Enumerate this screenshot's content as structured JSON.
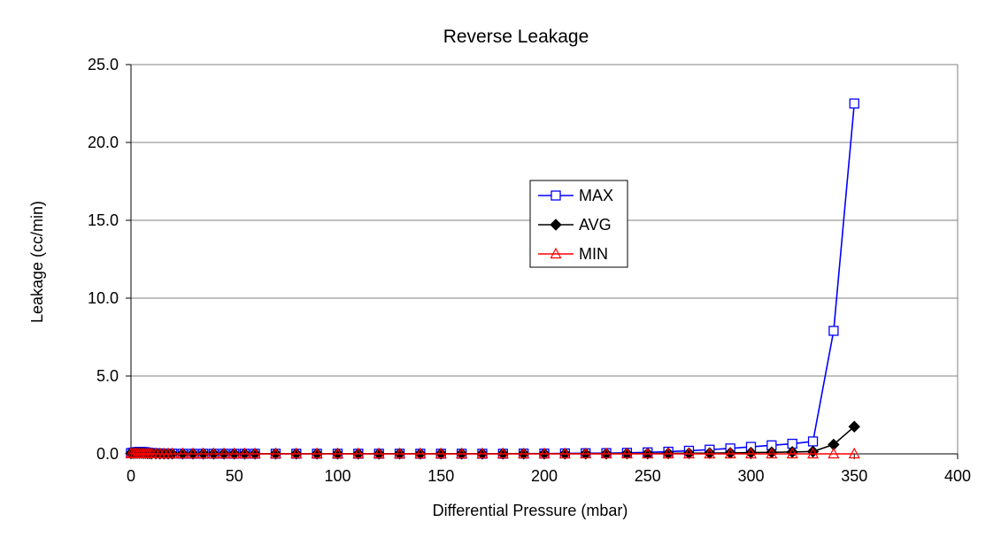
{
  "chart_data": {
    "type": "line",
    "title": "Reverse Leakage",
    "xlabel": "Differential Pressure (mbar)",
    "ylabel": "Leakage (cc/min)",
    "xlim": [
      0,
      400
    ],
    "ylim": [
      0,
      25
    ],
    "x_ticks": [
      "0",
      "50",
      "100",
      "150",
      "200",
      "250",
      "300",
      "350",
      "400"
    ],
    "y_ticks": [
      "0.0",
      "5.0",
      "10.0",
      "15.0",
      "20.0",
      "25.0"
    ],
    "grid": "horizontal",
    "legend_position": "center",
    "x": [
      0,
      1,
      2,
      3,
      4,
      5,
      6,
      7,
      8,
      9,
      10,
      12,
      14,
      16,
      18,
      20,
      25,
      30,
      35,
      40,
      45,
      50,
      55,
      60,
      70,
      80,
      90,
      100,
      110,
      120,
      130,
      140,
      150,
      160,
      170,
      180,
      190,
      200,
      210,
      220,
      230,
      240,
      250,
      260,
      270,
      280,
      290,
      300,
      310,
      320,
      330,
      340,
      350
    ],
    "series": [
      {
        "name": "MAX",
        "color": "#0000ff",
        "marker": "open-square",
        "values": [
          0.05,
          0.08,
          0.1,
          0.12,
          0.13,
          0.13,
          0.12,
          0.1,
          0.08,
          0.06,
          0.05,
          0.04,
          0.03,
          0.02,
          0.02,
          0.02,
          0.01,
          0.01,
          0.01,
          0.01,
          0.01,
          0.01,
          0.01,
          0.01,
          0.01,
          0.01,
          0.01,
          0.01,
          0.01,
          0.01,
          0.01,
          0.01,
          0.01,
          0.01,
          0.01,
          0.01,
          0.02,
          0.02,
          0.03,
          0.04,
          0.05,
          0.07,
          0.1,
          0.14,
          0.2,
          0.27,
          0.35,
          0.45,
          0.55,
          0.65,
          0.8,
          7.9,
          22.5
        ]
      },
      {
        "name": "AVG",
        "color": "#000000",
        "marker": "filled-diamond",
        "values": [
          0.03,
          0.04,
          0.05,
          0.05,
          0.05,
          0.05,
          0.04,
          0.04,
          0.03,
          0.03,
          0.02,
          0.02,
          0.01,
          0.01,
          0.01,
          0.01,
          0.01,
          0.01,
          0.01,
          0.01,
          0.01,
          0.01,
          0.01,
          0.01,
          0.01,
          0.01,
          0.01,
          0.01,
          0.01,
          0.01,
          0.01,
          0.01,
          0.01,
          0.01,
          0.01,
          0.01,
          0.01,
          0.01,
          0.01,
          0.01,
          0.01,
          0.02,
          0.02,
          0.03,
          0.04,
          0.05,
          0.06,
          0.08,
          0.1,
          0.12,
          0.15,
          0.6,
          1.75
        ]
      },
      {
        "name": "MIN",
        "color": "#ff0000",
        "marker": "open-triangle",
        "values": [
          0.01,
          0.01,
          0.01,
          0.01,
          0.01,
          0.01,
          0.01,
          0.01,
          0.01,
          0.01,
          0.01,
          0.01,
          0.0,
          0.0,
          0.0,
          0.0,
          0.0,
          0.0,
          0.0,
          0.0,
          0.0,
          0.0,
          0.0,
          0.0,
          0.0,
          0.0,
          0.0,
          0.0,
          0.0,
          0.0,
          0.0,
          0.0,
          0.0,
          0.0,
          0.0,
          0.0,
          0.0,
          0.0,
          0.0,
          0.0,
          0.0,
          0.0,
          0.0,
          0.0,
          0.0,
          0.0,
          0.0,
          0.0,
          0.0,
          0.0,
          0.0,
          0.0,
          0.0
        ]
      }
    ]
  }
}
